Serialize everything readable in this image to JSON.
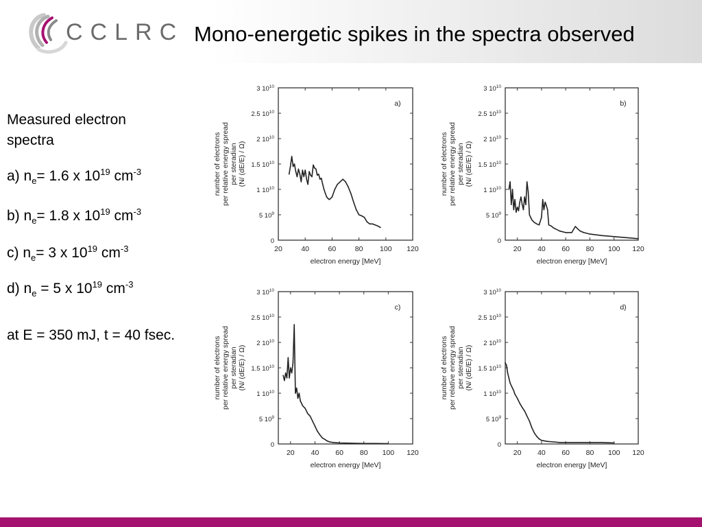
{
  "header": {
    "logo_text": "CCLRC",
    "title": "Mono-energetic spikes in the spectra observed"
  },
  "text": {
    "intro": "Measured electron spectra",
    "items": [
      {
        "prefix": "a) n",
        "sub": "e",
        "mid": "= 1.6 x 10",
        "sup": "19",
        "unit": " cm",
        "unit_sup": "-3"
      },
      {
        "prefix": "b) n",
        "sub": "e",
        "mid": "=  1.8 x 10",
        "sup": "19",
        "unit": " cm",
        "unit_sup": "-3"
      },
      {
        "prefix": "c) n",
        "sub": "e",
        "mid": "=  3 x 10",
        "sup": "19",
        "unit": " cm",
        "unit_sup": "-3"
      },
      {
        "prefix": "d) n",
        "sub": "e",
        "mid": " = 5 x 10",
        "sup": "19",
        "unit": " cm",
        "unit_sup": "-3"
      }
    ],
    "conditions": "at E = 350 mJ, t = 40 fsec."
  },
  "colors": {
    "accent_bar": "#a5116f",
    "line": "#222222"
  },
  "chart_data": [
    {
      "type": "line",
      "panel_label": "a)",
      "xlabel": "electron energy [MeV]",
      "ylabel": [
        "number of electrons",
        "per relative energy spread",
        "per steradian",
        "(N/ (dE/E) / Ω)"
      ],
      "xlim": [
        20,
        120
      ],
      "ylim": [
        0,
        30000000000.0
      ],
      "xticks": [
        20,
        40,
        60,
        80,
        100,
        120
      ],
      "yticks": [
        {
          "value": 0,
          "mant": "0",
          "exp": ""
        },
        {
          "value": 5000000000.0,
          "mant": "5 10",
          "exp": "9"
        },
        {
          "value": 10000000000.0,
          "mant": "1 10",
          "exp": "10"
        },
        {
          "value": 15000000000.0,
          "mant": "1.5 10",
          "exp": "10"
        },
        {
          "value": 20000000000.0,
          "mant": "2 10",
          "exp": "10"
        },
        {
          "value": 25000000000.0,
          "mant": "2.5 10",
          "exp": "10"
        },
        {
          "value": 30000000000.0,
          "mant": "3 10",
          "exp": "10"
        }
      ],
      "x": [
        28,
        29,
        30,
        31,
        32,
        33,
        34,
        35,
        36,
        37,
        38,
        39,
        40,
        41,
        42,
        43,
        44,
        45,
        46,
        47,
        48,
        49,
        50,
        51,
        52,
        53,
        54,
        55,
        56,
        57,
        58,
        60,
        62,
        64,
        66,
        68,
        70,
        72,
        74,
        76,
        78,
        80,
        82,
        84,
        86,
        88,
        90,
        92,
        94,
        96
      ],
      "y": [
        13000000000.0,
        14500000000.0,
        16500000000.0,
        14500000000.0,
        15000000000.0,
        13500000000.0,
        12500000000.0,
        14000000000.0,
        13000000000.0,
        11500000000.0,
        13800000000.0,
        12500000000.0,
        13800000000.0,
        12000000000.0,
        11000000000.0,
        13500000000.0,
        12800000000.0,
        12500000000.0,
        14800000000.0,
        14200000000.0,
        14000000000.0,
        12800000000.0,
        13000000000.0,
        12000000000.0,
        12200000000.0,
        11000000000.0,
        10000000000.0,
        9200000000.0,
        8500000000.0,
        8200000000.0,
        8000000000.0,
        8500000000.0,
        10000000000.0,
        11000000000.0,
        11500000000.0,
        12000000000.0,
        11500000000.0,
        10500000000.0,
        9200000000.0,
        7500000000.0,
        6000000000.0,
        5000000000.0,
        4800000000.0,
        4500000000.0,
        3600000000.0,
        3200000000.0,
        3200000000.0,
        3000000000.0,
        2800000000.0,
        2500000000.0
      ]
    },
    {
      "type": "line",
      "panel_label": "b)",
      "xlabel": "electron energy [MeV]",
      "ylabel": [
        "number of electrons",
        "per relative energy spread",
        "per steradian",
        "(N/ (dE/E) / Ω)"
      ],
      "xlim": [
        10,
        120
      ],
      "ylim": [
        0,
        30000000000.0
      ],
      "xticks": [
        20,
        40,
        60,
        80,
        100,
        120
      ],
      "yticks": [
        {
          "value": 0,
          "mant": "0",
          "exp": ""
        },
        {
          "value": 5000000000.0,
          "mant": "5 10",
          "exp": "9"
        },
        {
          "value": 10000000000.0,
          "mant": "1 10",
          "exp": "10"
        },
        {
          "value": 15000000000.0,
          "mant": "1.5 10",
          "exp": "10"
        },
        {
          "value": 20000000000.0,
          "mant": "2 10",
          "exp": "10"
        },
        {
          "value": 25000000000.0,
          "mant": "2.5 10",
          "exp": "10"
        },
        {
          "value": 30000000000.0,
          "mant": "3 10",
          "exp": "10"
        }
      ],
      "x": [
        13,
        14,
        15,
        16,
        17,
        18,
        19,
        20,
        21,
        22,
        23,
        24,
        25,
        26,
        27,
        28,
        29,
        30,
        31,
        32,
        34,
        36,
        38,
        40,
        41,
        42,
        43,
        44,
        45,
        46,
        48,
        50,
        55,
        60,
        65,
        68,
        70,
        72,
        75,
        80,
        90,
        100,
        110,
        120
      ],
      "y": [
        10000000000.0,
        11500000000.0,
        7000000000.0,
        10000000000.0,
        6000000000.0,
        8000000000.0,
        5500000000.0,
        6500000000.0,
        5800000000.0,
        7500000000.0,
        8500000000.0,
        7000000000.0,
        6000000000.0,
        8500000000.0,
        7000000000.0,
        11500000000.0,
        9500000000.0,
        5000000000.0,
        4500000000.0,
        4000000000.0,
        3500000000.0,
        3200000000.0,
        3000000000.0,
        4500000000.0,
        8000000000.0,
        6000000000.0,
        7500000000.0,
        6800000000.0,
        6000000000.0,
        3000000000.0,
        2800000000.0,
        2400000000.0,
        1800000000.0,
        1500000000.0,
        1500000000.0,
        2700000000.0,
        2200000000.0,
        1800000000.0,
        1500000000.0,
        1200000000.0,
        900000000.0,
        700000000.0,
        500000000.0,
        300000000.0
      ]
    },
    {
      "type": "line",
      "panel_label": "c)",
      "xlabel": "electron energy [MeV]",
      "ylabel": [
        "number of electrons",
        "per relative energy spread",
        "per steradian",
        "(N/ (dE/E) / Ω)"
      ],
      "xlim": [
        10,
        120
      ],
      "ylim": [
        0,
        30000000000.0
      ],
      "xticks": [
        20,
        40,
        60,
        80,
        100,
        120
      ],
      "yticks": [
        {
          "value": 0,
          "mant": "0",
          "exp": ""
        },
        {
          "value": 5000000000.0,
          "mant": "5 10",
          "exp": "9"
        },
        {
          "value": 10000000000.0,
          "mant": "1 10",
          "exp": "10"
        },
        {
          "value": 15000000000.0,
          "mant": "1.5 10",
          "exp": "10"
        },
        {
          "value": 20000000000.0,
          "mant": "2 10",
          "exp": "10"
        },
        {
          "value": 25000000000.0,
          "mant": "2.5 10",
          "exp": "10"
        },
        {
          "value": 30000000000.0,
          "mant": "3 10",
          "exp": "10"
        }
      ],
      "x": [
        14,
        15,
        16,
        17,
        18,
        19,
        20,
        21,
        22,
        23,
        24,
        25,
        26,
        27,
        28,
        30,
        32,
        34,
        36,
        38,
        40,
        42,
        44,
        46,
        48,
        50,
        52,
        55,
        60,
        70,
        80,
        90,
        100
      ],
      "y": [
        13500000000.0,
        12500000000.0,
        14000000000.0,
        13000000000.0,
        17000000000.0,
        13000000000.0,
        15000000000.0,
        14000000000.0,
        16000000000.0,
        23500000000.0,
        10000000000.0,
        11000000000.0,
        9000000000.0,
        10000000000.0,
        8500000000.0,
        7500000000.0,
        7000000000.0,
        6000000000.0,
        5500000000.0,
        4500000000.0,
        3500000000.0,
        2500000000.0,
        1800000000.0,
        1200000000.0,
        900000000.0,
        600000000.0,
        400000000.0,
        300000000.0,
        200000000.0,
        150000000.0,
        100000000.0,
        100000000.0,
        50000000.0
      ]
    },
    {
      "type": "line",
      "panel_label": "d)",
      "xlabel": "electron energy [MeV]",
      "ylabel": [
        "number of electrons",
        "per relative energy spread",
        "per steradian",
        "(N/ (dE/E) / Ω)"
      ],
      "xlim": [
        10,
        120
      ],
      "ylim": [
        0,
        30000000000.0
      ],
      "xticks": [
        20,
        40,
        60,
        80,
        100,
        120
      ],
      "yticks": [
        {
          "value": 0,
          "mant": "0",
          "exp": ""
        },
        {
          "value": 5000000000.0,
          "mant": "5 10",
          "exp": "9"
        },
        {
          "value": 10000000000.0,
          "mant": "1 10",
          "exp": "10"
        },
        {
          "value": 15000000000.0,
          "mant": "1.5 10",
          "exp": "10"
        },
        {
          "value": 20000000000.0,
          "mant": "2 10",
          "exp": "10"
        },
        {
          "value": 25000000000.0,
          "mant": "2.5 10",
          "exp": "10"
        },
        {
          "value": 30000000000.0,
          "mant": "3 10",
          "exp": "10"
        }
      ],
      "x": [
        10,
        11,
        12,
        13,
        14,
        15,
        16,
        17,
        18,
        20,
        22,
        24,
        26,
        28,
        30,
        32,
        34,
        36,
        38,
        40,
        45,
        50,
        55,
        60,
        70,
        80,
        90,
        100
      ],
      "y": [
        16000000000.0,
        15500000000.0,
        14000000000.0,
        13000000000.0,
        12000000000.0,
        11500000000.0,
        11000000000.0,
        10500000000.0,
        9800000000.0,
        9000000000.0,
        8000000000.0,
        7200000000.0,
        6500000000.0,
        5500000000.0,
        4500000000.0,
        3200000000.0,
        2200000000.0,
        1500000000.0,
        1000000000.0,
        700000000.0,
        500000000.0,
        400000000.0,
        300000000.0,
        300000000.0,
        300000000.0,
        300000000.0,
        300000000.0,
        200000000.0
      ]
    }
  ]
}
